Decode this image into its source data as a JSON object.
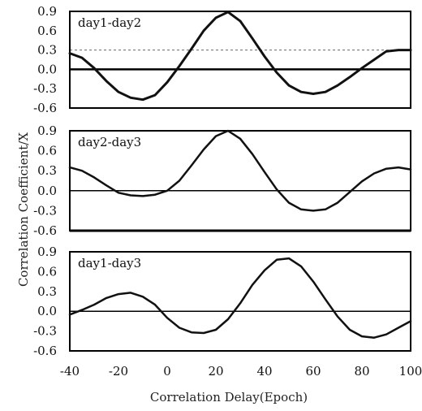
{
  "chart_data": [
    {
      "type": "line",
      "title": "day1-day2",
      "xlim": [
        -40,
        100
      ],
      "ylim": [
        -0.6,
        0.9
      ],
      "yticks": [
        "0.9",
        "0.6",
        "0.3",
        "0.0",
        "-0.3",
        "-0.6"
      ],
      "threshold": 0.3,
      "series": [
        {
          "x": [
            -40,
            -35,
            -30,
            -25,
            -20,
            -15,
            -10,
            -5,
            0,
            5,
            10,
            15,
            20,
            25,
            30,
            35,
            40,
            45,
            50,
            55,
            60,
            65,
            70,
            75,
            80,
            85,
            90,
            95,
            100
          ],
          "values": [
            0.25,
            0.18,
            0.02,
            -0.18,
            -0.35,
            -0.44,
            -0.47,
            -0.4,
            -0.2,
            0.05,
            0.32,
            0.6,
            0.8,
            0.89,
            0.75,
            0.48,
            0.2,
            -0.05,
            -0.25,
            -0.35,
            -0.38,
            -0.35,
            -0.25,
            -0.12,
            0.02,
            0.15,
            0.28,
            0.3,
            0.3
          ]
        }
      ]
    },
    {
      "type": "line",
      "title": "day2-day3",
      "xlim": [
        -40,
        100
      ],
      "ylim": [
        -0.6,
        0.9
      ],
      "yticks": [
        "0.9",
        "0.6",
        "0.3",
        "0.0",
        "-0.3",
        "-0.6"
      ],
      "series": [
        {
          "x": [
            -40,
            -35,
            -30,
            -25,
            -20,
            -15,
            -10,
            -5,
            0,
            5,
            10,
            15,
            20,
            25,
            30,
            35,
            40,
            45,
            50,
            55,
            60,
            65,
            70,
            75,
            80,
            85,
            90,
            95,
            100
          ],
          "values": [
            0.35,
            0.3,
            0.2,
            0.08,
            -0.03,
            -0.07,
            -0.08,
            -0.06,
            0.0,
            0.15,
            0.38,
            0.62,
            0.82,
            0.9,
            0.78,
            0.55,
            0.28,
            0.02,
            -0.18,
            -0.28,
            -0.3,
            -0.28,
            -0.18,
            -0.02,
            0.14,
            0.26,
            0.33,
            0.35,
            0.32
          ]
        }
      ]
    },
    {
      "type": "line",
      "title": "day1-day3",
      "xlim": [
        -40,
        100
      ],
      "ylim": [
        -0.6,
        0.9
      ],
      "yticks": [
        "0.9",
        "0.6",
        "0.3",
        "0.0",
        "-0.3",
        "-0.6"
      ],
      "series": [
        {
          "x": [
            -40,
            -35,
            -30,
            -25,
            -20,
            -15,
            -10,
            -5,
            0,
            5,
            10,
            15,
            20,
            25,
            30,
            35,
            40,
            45,
            50,
            55,
            60,
            65,
            70,
            75,
            80,
            85,
            90,
            95,
            100
          ],
          "values": [
            -0.05,
            0.02,
            0.1,
            0.2,
            0.26,
            0.28,
            0.22,
            0.1,
            -0.1,
            -0.25,
            -0.32,
            -0.33,
            -0.28,
            -0.12,
            0.12,
            0.4,
            0.62,
            0.78,
            0.8,
            0.68,
            0.45,
            0.18,
            -0.08,
            -0.28,
            -0.38,
            -0.4,
            -0.35,
            -0.25,
            -0.15
          ]
        }
      ]
    }
  ],
  "xticks": [
    "-40",
    "-20",
    "0",
    "20",
    "40",
    "60",
    "80",
    "100"
  ],
  "xlabel": "Correlation Delay(Epoch)",
  "ylabel": "Correlation Coefficient/X"
}
